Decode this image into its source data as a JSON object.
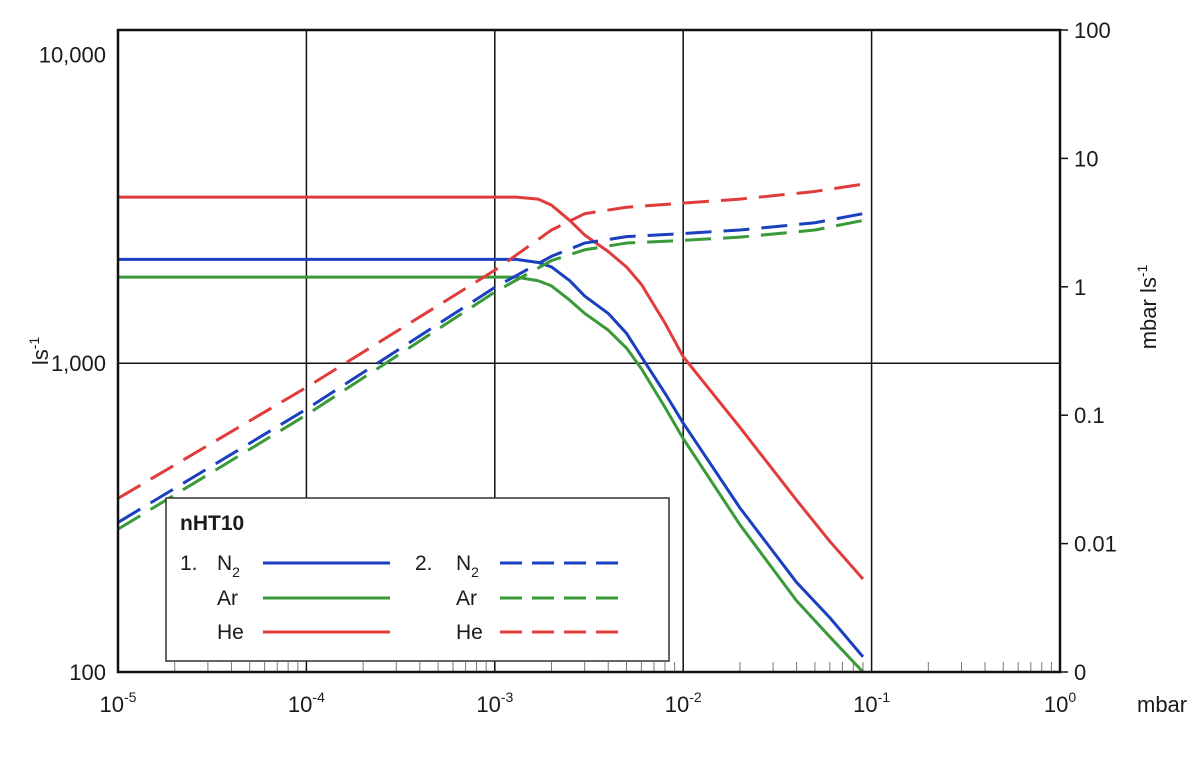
{
  "chart_data": {
    "type": "line",
    "x_unit": "mbar",
    "x_scale": "log",
    "xlim": [
      1e-05,
      1
    ],
    "x_ticks": [
      {
        "value": 1e-05,
        "base": "10",
        "exp": "-5"
      },
      {
        "value": 0.0001,
        "base": "10",
        "exp": "-4"
      },
      {
        "value": 0.001,
        "base": "10",
        "exp": "-3"
      },
      {
        "value": 0.01,
        "base": "10",
        "exp": "-2"
      },
      {
        "value": 0.1,
        "base": "10",
        "exp": "-1"
      },
      {
        "value": 1,
        "base": "10",
        "exp": "0"
      }
    ],
    "y_left": {
      "label_base": "ls",
      "label_exp": "-1",
      "scale": "log",
      "lim": [
        100,
        12000
      ],
      "ticks": [
        {
          "value": 100,
          "label": "100"
        },
        {
          "value": 1000,
          "label": "1,000"
        },
        {
          "value": 10000,
          "label": "10,000"
        }
      ]
    },
    "y_right": {
      "label_base": "mbar ls",
      "label_exp": "-1",
      "ticks": [
        {
          "label": "100",
          "frac": 0.0
        },
        {
          "label": "10",
          "frac": 0.2
        },
        {
          "label": "1",
          "frac": 0.4
        },
        {
          "label": "0.1",
          "frac": 0.6
        },
        {
          "label": "0.01",
          "frac": 0.8
        },
        {
          "label": "0",
          "frac": 1.0
        }
      ]
    },
    "grid": true,
    "legend": {
      "title": "nHT10",
      "position": "bottom-left",
      "groups": [
        {
          "number": "1.",
          "style": "solid",
          "items": [
            {
              "gas": "N",
              "sub": "2",
              "series": "n2_speed"
            },
            {
              "gas": "Ar",
              "sub": "",
              "series": "ar_speed"
            },
            {
              "gas": "He",
              "sub": "",
              "series": "he_speed"
            }
          ]
        },
        {
          "number": "2.",
          "style": "dashed",
          "items": [
            {
              "gas": "N",
              "sub": "2",
              "series": "n2_throughput"
            },
            {
              "gas": "Ar",
              "sub": "",
              "series": "ar_throughput"
            },
            {
              "gas": "He",
              "sub": "",
              "series": "he_throughput"
            }
          ]
        }
      ]
    },
    "series": [
      {
        "id": "he_speed",
        "color": "#e03c3c",
        "dash": false,
        "axis": "left",
        "points": [
          [
            1e-05,
            3450
          ],
          [
            0.0013,
            3450
          ],
          [
            0.0017,
            3400
          ],
          [
            0.002,
            3250
          ],
          [
            0.0025,
            2900
          ],
          [
            0.003,
            2600
          ],
          [
            0.004,
            2300
          ],
          [
            0.005,
            2050
          ],
          [
            0.006,
            1800
          ],
          [
            0.008,
            1350
          ],
          [
            0.01,
            1050
          ],
          [
            0.02,
            620
          ],
          [
            0.04,
            360
          ],
          [
            0.06,
            265
          ],
          [
            0.09,
            200
          ]
        ]
      },
      {
        "id": "n2_speed",
        "color": "#1a3fbf",
        "dash": false,
        "axis": "left",
        "points": [
          [
            1e-05,
            2170
          ],
          [
            0.0013,
            2170
          ],
          [
            0.0017,
            2120
          ],
          [
            0.002,
            2050
          ],
          [
            0.0025,
            1850
          ],
          [
            0.003,
            1650
          ],
          [
            0.004,
            1450
          ],
          [
            0.005,
            1250
          ],
          [
            0.006,
            1050
          ],
          [
            0.008,
            800
          ],
          [
            0.01,
            640
          ],
          [
            0.02,
            340
          ],
          [
            0.04,
            195
          ],
          [
            0.06,
            150
          ],
          [
            0.09,
            112
          ]
        ]
      },
      {
        "id": "ar_speed",
        "color": "#3a9a3a",
        "dash": false,
        "axis": "left",
        "points": [
          [
            1e-05,
            1900
          ],
          [
            0.0013,
            1900
          ],
          [
            0.0017,
            1850
          ],
          [
            0.002,
            1780
          ],
          [
            0.0025,
            1600
          ],
          [
            0.003,
            1450
          ],
          [
            0.004,
            1280
          ],
          [
            0.005,
            1120
          ],
          [
            0.006,
            960
          ],
          [
            0.008,
            720
          ],
          [
            0.01,
            570
          ],
          [
            0.02,
            300
          ],
          [
            0.04,
            170
          ],
          [
            0.06,
            130
          ],
          [
            0.09,
            100
          ]
        ]
      },
      {
        "id": "he_throughput",
        "color": "#e03c3c",
        "dash": true,
        "axis": "left",
        "points": [
          [
            1e-05,
            365
          ],
          [
            0.0001,
            835
          ],
          [
            0.001,
            2000
          ],
          [
            0.002,
            2700
          ],
          [
            0.003,
            3050
          ],
          [
            0.005,
            3200
          ],
          [
            0.01,
            3300
          ],
          [
            0.02,
            3400
          ],
          [
            0.05,
            3600
          ],
          [
            0.09,
            3800
          ]
        ]
      },
      {
        "id": "n2_throughput",
        "color": "#1a3fbf",
        "dash": true,
        "axis": "left",
        "points": [
          [
            1e-05,
            305
          ],
          [
            0.0001,
            710
          ],
          [
            0.001,
            1760
          ],
          [
            0.002,
            2220
          ],
          [
            0.003,
            2450
          ],
          [
            0.005,
            2570
          ],
          [
            0.01,
            2630
          ],
          [
            0.02,
            2700
          ],
          [
            0.05,
            2850
          ],
          [
            0.09,
            3050
          ]
        ]
      },
      {
        "id": "ar_throughput",
        "color": "#3a9a3a",
        "dash": true,
        "axis": "left",
        "points": [
          [
            1e-05,
            290
          ],
          [
            0.0001,
            680
          ],
          [
            0.001,
            1700
          ],
          [
            0.002,
            2150
          ],
          [
            0.003,
            2330
          ],
          [
            0.005,
            2450
          ],
          [
            0.01,
            2500
          ],
          [
            0.02,
            2560
          ],
          [
            0.05,
            2700
          ],
          [
            0.09,
            2900
          ]
        ]
      }
    ]
  }
}
